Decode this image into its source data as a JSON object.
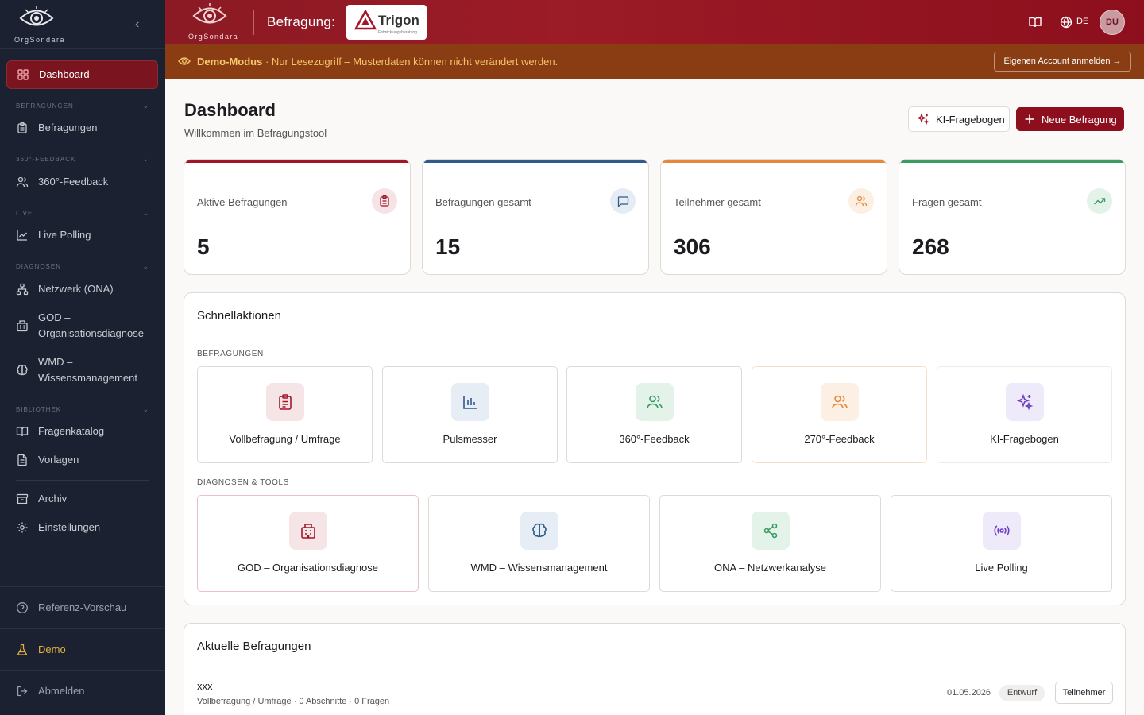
{
  "brand": {
    "name": "OrgSondara"
  },
  "sidebar": {
    "collapse_icon": "chevron-left-icon",
    "dashboard": "Dashboard",
    "section_befragungen": "BEFRAGUNGEN",
    "befragungen": "Befragungen",
    "section_feedback": "360°-FEEDBACK",
    "feedback": "360°-Feedback",
    "section_live": "LIVE",
    "live_polling": "Live Polling",
    "section_diagnosen": "DIAGNOSEN",
    "netzwerk": "Netzwerk (ONA)",
    "god_1": "GOD –",
    "god_2": "Organisationsdiagnose",
    "wmd_1": "WMD –",
    "wmd_2": "Wissensmanagement",
    "section_bibliothek": "BIBLIOTHEK",
    "fragenkatalog": "Fragenkatalog",
    "vorlagen": "Vorlagen",
    "archiv": "Archiv",
    "einstellungen": "Einstellungen",
    "referenz": "Referenz-Vorschau",
    "demo": "Demo",
    "abmelden": "Abmelden"
  },
  "header": {
    "title": "Befragung:",
    "partner_name": "Trigon",
    "partner_sub": "Entwicklungsberatung",
    "lang": "DE",
    "avatar": "DU"
  },
  "banner": {
    "bold": "Demo-Modus",
    "text": " · Nur Lesezugriff – Musterdaten können nicht verändert werden.",
    "button": "Eigenen Account anmelden →"
  },
  "page": {
    "title": "Dashboard",
    "subtitle": "Willkommen im Befragungstool",
    "btn_ki": "KI-Fragebogen",
    "btn_new": "Neue Befragung"
  },
  "stats": [
    {
      "label": "Aktive Befragungen",
      "value": "5",
      "color": "#a3162a",
      "icon": "clipboard-icon"
    },
    {
      "label": "Befragungen gesamt",
      "value": "15",
      "color": "#2f5a8a",
      "icon": "message-square-icon"
    },
    {
      "label": "Teilnehmer gesamt",
      "value": "306",
      "color": "#e8873a",
      "icon": "users-icon"
    },
    {
      "label": "Fragen gesamt",
      "value": "268",
      "color": "#3a9b63",
      "icon": "trending-up-icon"
    }
  ],
  "quick": {
    "title": "Schnellaktionen",
    "group1": "BEFRAGUNGEN",
    "group2": "DIAGNOSEN & TOOLS",
    "items1": [
      "Vollbefragung / Umfrage",
      "Pulsmesser",
      "360°-Feedback",
      "270°-Feedback",
      "KI-Fragebogen"
    ],
    "items2": [
      "GOD – Organisationsdiagnose",
      "WMD – Wissensmanagement",
      "ONA – Netzwerkanalyse",
      "Live Polling"
    ]
  },
  "recent": {
    "title": "Aktuelle Befragungen",
    "rows": [
      {
        "name": "xxx",
        "meta": "Vollbefragung / Umfrage · 0 Abschnitte · 0 Fragen",
        "date": "01.05.2026",
        "status": "Entwurf",
        "action": "Teilnehmer"
      }
    ]
  }
}
